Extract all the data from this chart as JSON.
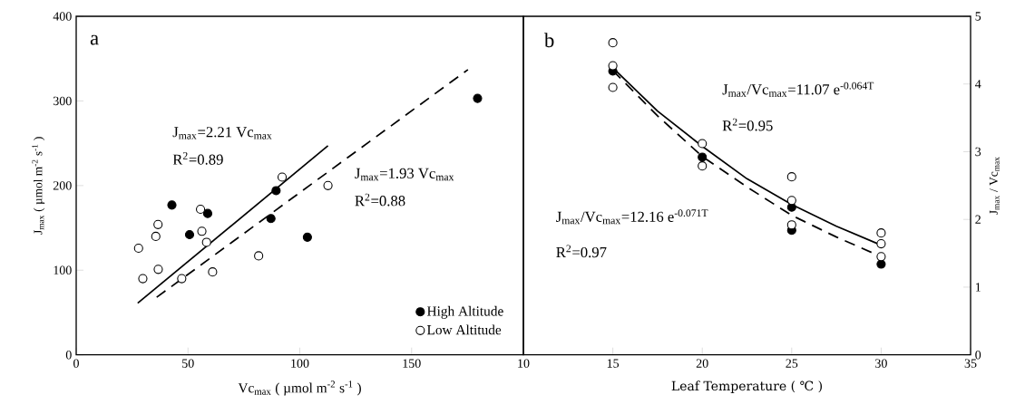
{
  "chart_data": [
    {
      "type": "scatter",
      "xlabel": "Vc$_{max}$ ( µmol m$^{-2}$ s$^{-1}$ )",
      "ylabel": "J$_{max}$ ( µmol m$^{-2}$ s$^{-1}$ )",
      "xlim": [
        0,
        200
      ],
      "xticks": [
        0,
        50,
        100,
        150
      ],
      "ylim": [
        0,
        400
      ],
      "yticks": [
        0,
        100,
        200,
        300,
        400
      ],
      "marker": "circle",
      "legend": "bottom right",
      "annotations": [
        "a",
        "J$_{max}$=2.21 Vc$_{max}$",
        "R$^{2}$=0.89",
        "J$_{max}$=1.93 Vc$_{max}$",
        "R$^{2}$=0.88"
      ],
      "series": [
        {
          "name": "High Altitude",
          "color": "#000000",
          "x": [
            42.8,
            58.8,
            50.7,
            89.4,
            87.1,
            103.4,
            179.5
          ],
          "values": [
            177,
            167,
            142,
            194,
            161,
            139,
            303
          ]
        },
        {
          "name": "Low Altitude",
          "color": "#000000",
          "x": [
            27.9,
            29.8,
            36.6,
            35.6,
            36.7,
            47.2,
            55.6,
            56.2,
            58.3,
            61.0,
            81.6,
            92.1,
            112.6
          ],
          "values": [
            126,
            90,
            154,
            140,
            101,
            90,
            172,
            146,
            133,
            98,
            117,
            210,
            200
          ]
        },
        {
          "type": "line",
          "color": "#000000",
          "marker": "none",
          "line_style": "solid",
          "x": [
            27.5,
            112.6
          ],
          "values": [
            61,
            247
          ]
        },
        {
          "type": "line",
          "color": "#000000",
          "marker": "none",
          "line_style": "dashed",
          "x": [
            36.0,
            175.2
          ],
          "values": [
            68,
            337
          ]
        }
      ]
    },
    {
      "type": "scatter",
      "xlabel": "Leaf Temperature ( ℃ )",
      "ylabel": "J$_{max}$ / Vc$_{max}$",
      "xlim": [
        10,
        35
      ],
      "xticks": [
        10,
        15,
        20,
        25,
        30,
        35
      ],
      "ylim": [
        0,
        5
      ],
      "yticks": [
        0,
        1,
        2,
        3,
        4,
        5
      ],
      "marker": "circle",
      "annotations": [
        "b",
        "J$_{max}$/Vc$_{max}$=11.07 e$^{-0.064T}$",
        "R$^{2}$=0.95",
        "J$_{max}$/Vc$_{max}$=12.16 e$^{-0.071T}$",
        "R$^{2}$=0.97"
      ],
      "series": [
        {
          "color": "#000000",
          "x": [
            15,
            20,
            25,
            25,
            30
          ],
          "values": [
            4.19,
            2.92,
            2.18,
            1.84,
            1.34
          ]
        },
        {
          "color": "#000000",
          "x": [
            15,
            15,
            15,
            20,
            20,
            25,
            25,
            25,
            30,
            30,
            30
          ],
          "values": [
            4.61,
            4.27,
            3.95,
            3.12,
            2.79,
            2.63,
            2.28,
            1.92,
            1.8,
            1.64,
            1.45
          ]
        },
        {
          "type": "line",
          "color": "#000000",
          "marker": "none",
          "line_style": "solid",
          "x": [
            15,
            17.5,
            20,
            22.5,
            25,
            27.5,
            30
          ],
          "values": [
            4.24,
            3.6,
            3.08,
            2.6,
            2.22,
            1.9,
            1.62
          ]
        },
        {
          "type": "line",
          "color": "#000000",
          "marker": "none",
          "line_style": "dashed",
          "x": [
            15,
            17.5,
            20,
            22.5,
            25,
            27.5,
            30
          ],
          "values": [
            4.2,
            3.53,
            2.93,
            2.48,
            2.06,
            1.74,
            1.45
          ]
        }
      ]
    }
  ]
}
